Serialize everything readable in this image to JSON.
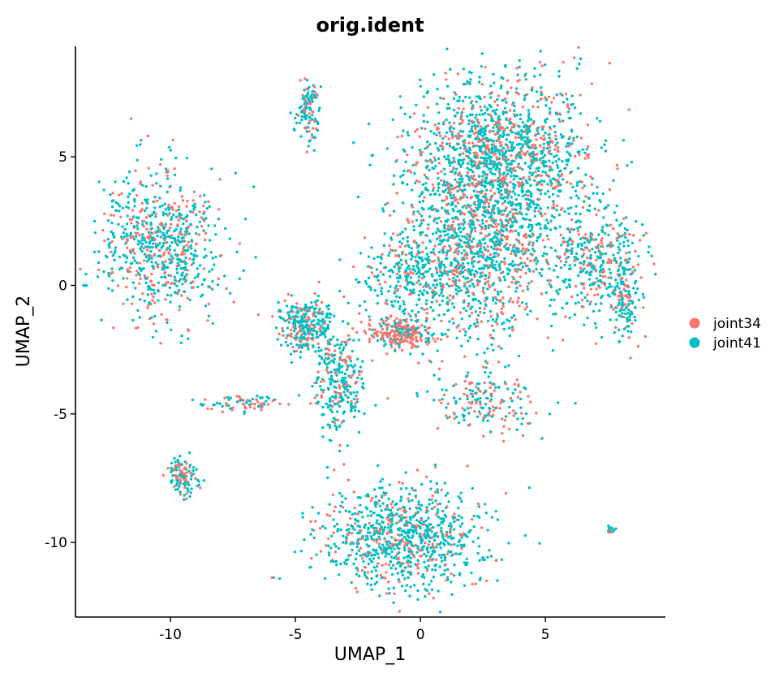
{
  "chart_data": {
    "type": "scatter",
    "title": "orig.ident",
    "xlabel": "UMAP_1",
    "ylabel": "UMAP_2",
    "xlim": [
      -13.8,
      9.8
    ],
    "ylim": [
      -12.9,
      9.3
    ],
    "xticks": [
      -10,
      -5,
      0,
      5
    ],
    "xtick_labels": [
      "-10",
      "-5",
      "0",
      "5"
    ],
    "yticks": [
      -10,
      -5,
      0,
      5
    ],
    "ytick_labels": [
      "-10",
      "-5",
      "0",
      "5"
    ],
    "grid": false,
    "legend_position": "right",
    "series": [
      {
        "name": "joint34",
        "color": "#F8766D"
      },
      {
        "name": "joint41",
        "color": "#00BFC4"
      }
    ],
    "clusters": [
      {
        "center": [
          -10.4,
          1.6
        ],
        "spread": [
          1.2,
          1.4
        ],
        "n": 700,
        "mix": 0.35
      },
      {
        "center": [
          -4.5,
          6.9
        ],
        "spread": [
          0.25,
          0.65
        ],
        "n": 120,
        "mix": 0.3
      },
      {
        "center": [
          3.1,
          4.8
        ],
        "spread": [
          1.8,
          1.6
        ],
        "n": 1600,
        "mix": 0.3
      },
      {
        "center": [
          2.3,
          1.0
        ],
        "spread": [
          1.4,
          1.5
        ],
        "n": 900,
        "mix": 0.35
      },
      {
        "center": [
          6.9,
          1.0
        ],
        "spread": [
          0.9,
          1.2
        ],
        "n": 350,
        "mix": 0.3
      },
      {
        "center": [
          8.1,
          -0.2
        ],
        "spread": [
          0.35,
          0.9
        ],
        "n": 150,
        "mix": 0.3
      },
      {
        "center": [
          -0.7,
          -1.8
        ],
        "spread": [
          0.7,
          0.35
        ],
        "n": 250,
        "mix": 0.7
      },
      {
        "center": [
          -0.5,
          0.3
        ],
        "spread": [
          0.9,
          0.8
        ],
        "n": 250,
        "mix": 0.25
      },
      {
        "center": [
          -4.6,
          -1.6
        ],
        "spread": [
          0.55,
          0.5
        ],
        "n": 300,
        "mix": 0.3
      },
      {
        "center": [
          -3.2,
          -3.8
        ],
        "spread": [
          0.5,
          1.1
        ],
        "n": 280,
        "mix": 0.3
      },
      {
        "center": [
          2.7,
          -4.5
        ],
        "spread": [
          1.1,
          0.6
        ],
        "n": 180,
        "mix": 0.5
      },
      {
        "center": [
          -7.1,
          -4.6
        ],
        "spread": [
          0.7,
          0.15
        ],
        "n": 70,
        "mix": 0.5
      },
      {
        "center": [
          -9.5,
          -7.4
        ],
        "spread": [
          0.3,
          0.35
        ],
        "n": 120,
        "mix": 0.35
      },
      {
        "center": [
          -0.7,
          -9.8
        ],
        "spread": [
          1.6,
          1.0
        ],
        "n": 900,
        "mix": 0.25
      },
      {
        "center": [
          7.6,
          -9.5
        ],
        "spread": [
          0.08,
          0.08
        ],
        "n": 20,
        "mix": 0.2
      }
    ]
  }
}
